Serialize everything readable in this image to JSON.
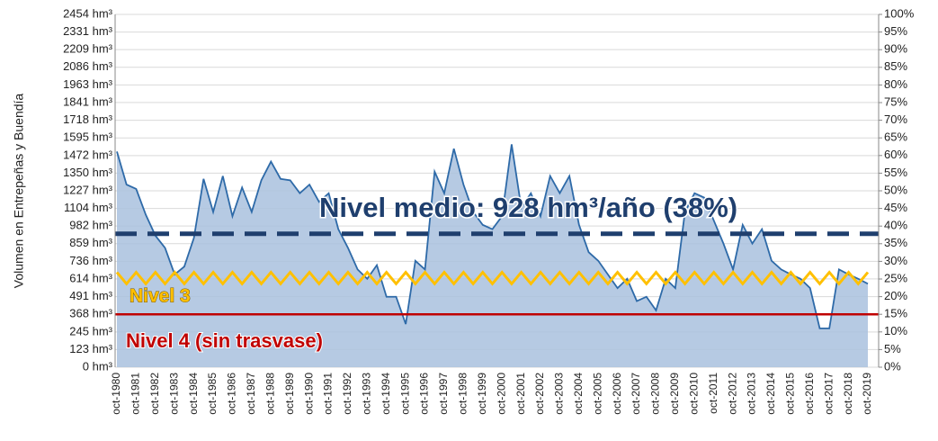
{
  "chart_data": {
    "type": "area",
    "y_label": "Volumen en Entrepeñas y Buendía",
    "categories": [
      "oct-1980",
      null,
      "oct-1981",
      null,
      "oct-1982",
      null,
      "oct-1983",
      null,
      "oct-1984",
      null,
      "oct-1985",
      null,
      "oct-1986",
      null,
      "oct-1987",
      null,
      "oct-1988",
      null,
      "oct-1989",
      null,
      "oct-1990",
      null,
      "oct-1991",
      null,
      "oct-1992",
      null,
      "oct-1993",
      null,
      "oct-1994",
      null,
      "oct-1995",
      null,
      "oct-1996",
      null,
      "oct-1997",
      null,
      "oct-1998",
      null,
      "oct-1999",
      null,
      "oct-2000",
      null,
      "oct-2001",
      null,
      "oct-2002",
      null,
      "oct-2003",
      null,
      "oct-2004",
      null,
      "oct-2005",
      null,
      "oct-2006",
      null,
      "oct-2007",
      null,
      "oct-2008",
      null,
      "oct-2009",
      null,
      "oct-2010",
      null,
      "oct-2011",
      null,
      "oct-2012",
      null,
      "oct-2013",
      null,
      "oct-2014",
      null,
      "oct-2015",
      null,
      "oct-2016",
      null,
      "oct-2017",
      null,
      "oct-2018",
      null,
      "oct-2019"
    ],
    "series": [
      {
        "color": "#2e6aa8",
        "fill": "#a9c1de",
        "values": [
          1500,
          1270,
          1240,
          1060,
          915,
          830,
          645,
          700,
          900,
          1310,
          1080,
          1330,
          1050,
          1250,
          1080,
          1300,
          1430,
          1310,
          1300,
          1210,
          1270,
          1150,
          1210,
          960,
          830,
          680,
          615,
          710,
          490,
          490,
          300,
          740,
          680,
          1360,
          1210,
          1520,
          1270,
          1080,
          990,
          960,
          1050,
          1550,
          1110,
          1210,
          1050,
          1330,
          1210,
          1330,
          990,
          800,
          740,
          645,
          550,
          615,
          460,
          490,
          395,
          615,
          550,
          1080,
          1210,
          1180,
          1020,
          860,
          680,
          990,
          860,
          960,
          740,
          680,
          645,
          615,
          550,
          270,
          270,
          680,
          645,
          615,
          580
        ]
      },
      {
        "name": "Nivel 3",
        "color": "#ffc000",
        "values": [
          660,
          580,
          660,
          580,
          660,
          580,
          660,
          580,
          660,
          580,
          660,
          580,
          660,
          580,
          660,
          580,
          660,
          580,
          660,
          580,
          660,
          580,
          660,
          580,
          660,
          580,
          660,
          580,
          660,
          580,
          660,
          580,
          660,
          580,
          660,
          580,
          660,
          580,
          660,
          580,
          660,
          580,
          660,
          580,
          660,
          580,
          660,
          580,
          660,
          580,
          660,
          580,
          660,
          580,
          660,
          580,
          660,
          580,
          660,
          580,
          660,
          580,
          660,
          580,
          660,
          580,
          660,
          580,
          660,
          580,
          660,
          580,
          660,
          580,
          660,
          580,
          660,
          580,
          660
        ]
      }
    ],
    "reference_lines": [
      {
        "value": 928,
        "label": "Nivel medio: 928 hm³/año (38%)",
        "color": "#1f3f6e",
        "dashed": true
      },
      {
        "value": 368,
        "label": "Nivel 4 (sin trasvase)",
        "color": "#c00000",
        "dashed": false
      }
    ],
    "ylim": [
      0,
      2454
    ],
    "yticks": [
      {
        "value": 0,
        "label": "0 hm³"
      },
      {
        "value": 123,
        "label": "123 hm³"
      },
      {
        "value": 245,
        "label": "245 hm³"
      },
      {
        "value": 368,
        "label": "368 hm³"
      },
      {
        "value": 491,
        "label": "491 hm³"
      },
      {
        "value": 614,
        "label": "614 hm³"
      },
      {
        "value": 736,
        "label": "736 hm³"
      },
      {
        "value": 859,
        "label": "859 hm³"
      },
      {
        "value": 982,
        "label": "982 hm³"
      },
      {
        "value": 1104,
        "label": "1104 hm³"
      },
      {
        "value": 1227,
        "label": "1227 hm³"
      },
      {
        "value": 1350,
        "label": "1350 hm³"
      },
      {
        "value": 1472,
        "label": "1472 hm³"
      },
      {
        "value": 1595,
        "label": "1595 hm³"
      },
      {
        "value": 1718,
        "label": "1718 hm³"
      },
      {
        "value": 1841,
        "label": "1841 hm³"
      },
      {
        "value": 1963,
        "label": "1963 hm³"
      },
      {
        "value": 2086,
        "label": "2086 hm³"
      },
      {
        "value": 2209,
        "label": "2209 hm³"
      },
      {
        "value": 2331,
        "label": "2331 hm³"
      },
      {
        "value": 2454,
        "label": "2454 hm³"
      }
    ],
    "y2lim": [
      0,
      100
    ],
    "y2ticks": [
      {
        "value": 0,
        "label": "0%"
      },
      {
        "value": 5,
        "label": "5%"
      },
      {
        "value": 10,
        "label": "10%"
      },
      {
        "value": 15,
        "label": "15%"
      },
      {
        "value": 20,
        "label": "20%"
      },
      {
        "value": 25,
        "label": "25%"
      },
      {
        "value": 30,
        "label": "30%"
      },
      {
        "value": 35,
        "label": "35%"
      },
      {
        "value": 40,
        "label": "40%"
      },
      {
        "value": 45,
        "label": "45%"
      },
      {
        "value": 50,
        "label": "50%"
      },
      {
        "value": 55,
        "label": "55%"
      },
      {
        "value": 60,
        "label": "60%"
      },
      {
        "value": 65,
        "label": "65%"
      },
      {
        "value": 70,
        "label": "70%"
      },
      {
        "value": 75,
        "label": "75%"
      },
      {
        "value": 80,
        "label": "80%"
      },
      {
        "value": 85,
        "label": "85%"
      },
      {
        "value": 90,
        "label": "90%"
      },
      {
        "value": 95,
        "label": "95%"
      },
      {
        "value": 100,
        "label": "100%"
      }
    ],
    "grid": true
  }
}
